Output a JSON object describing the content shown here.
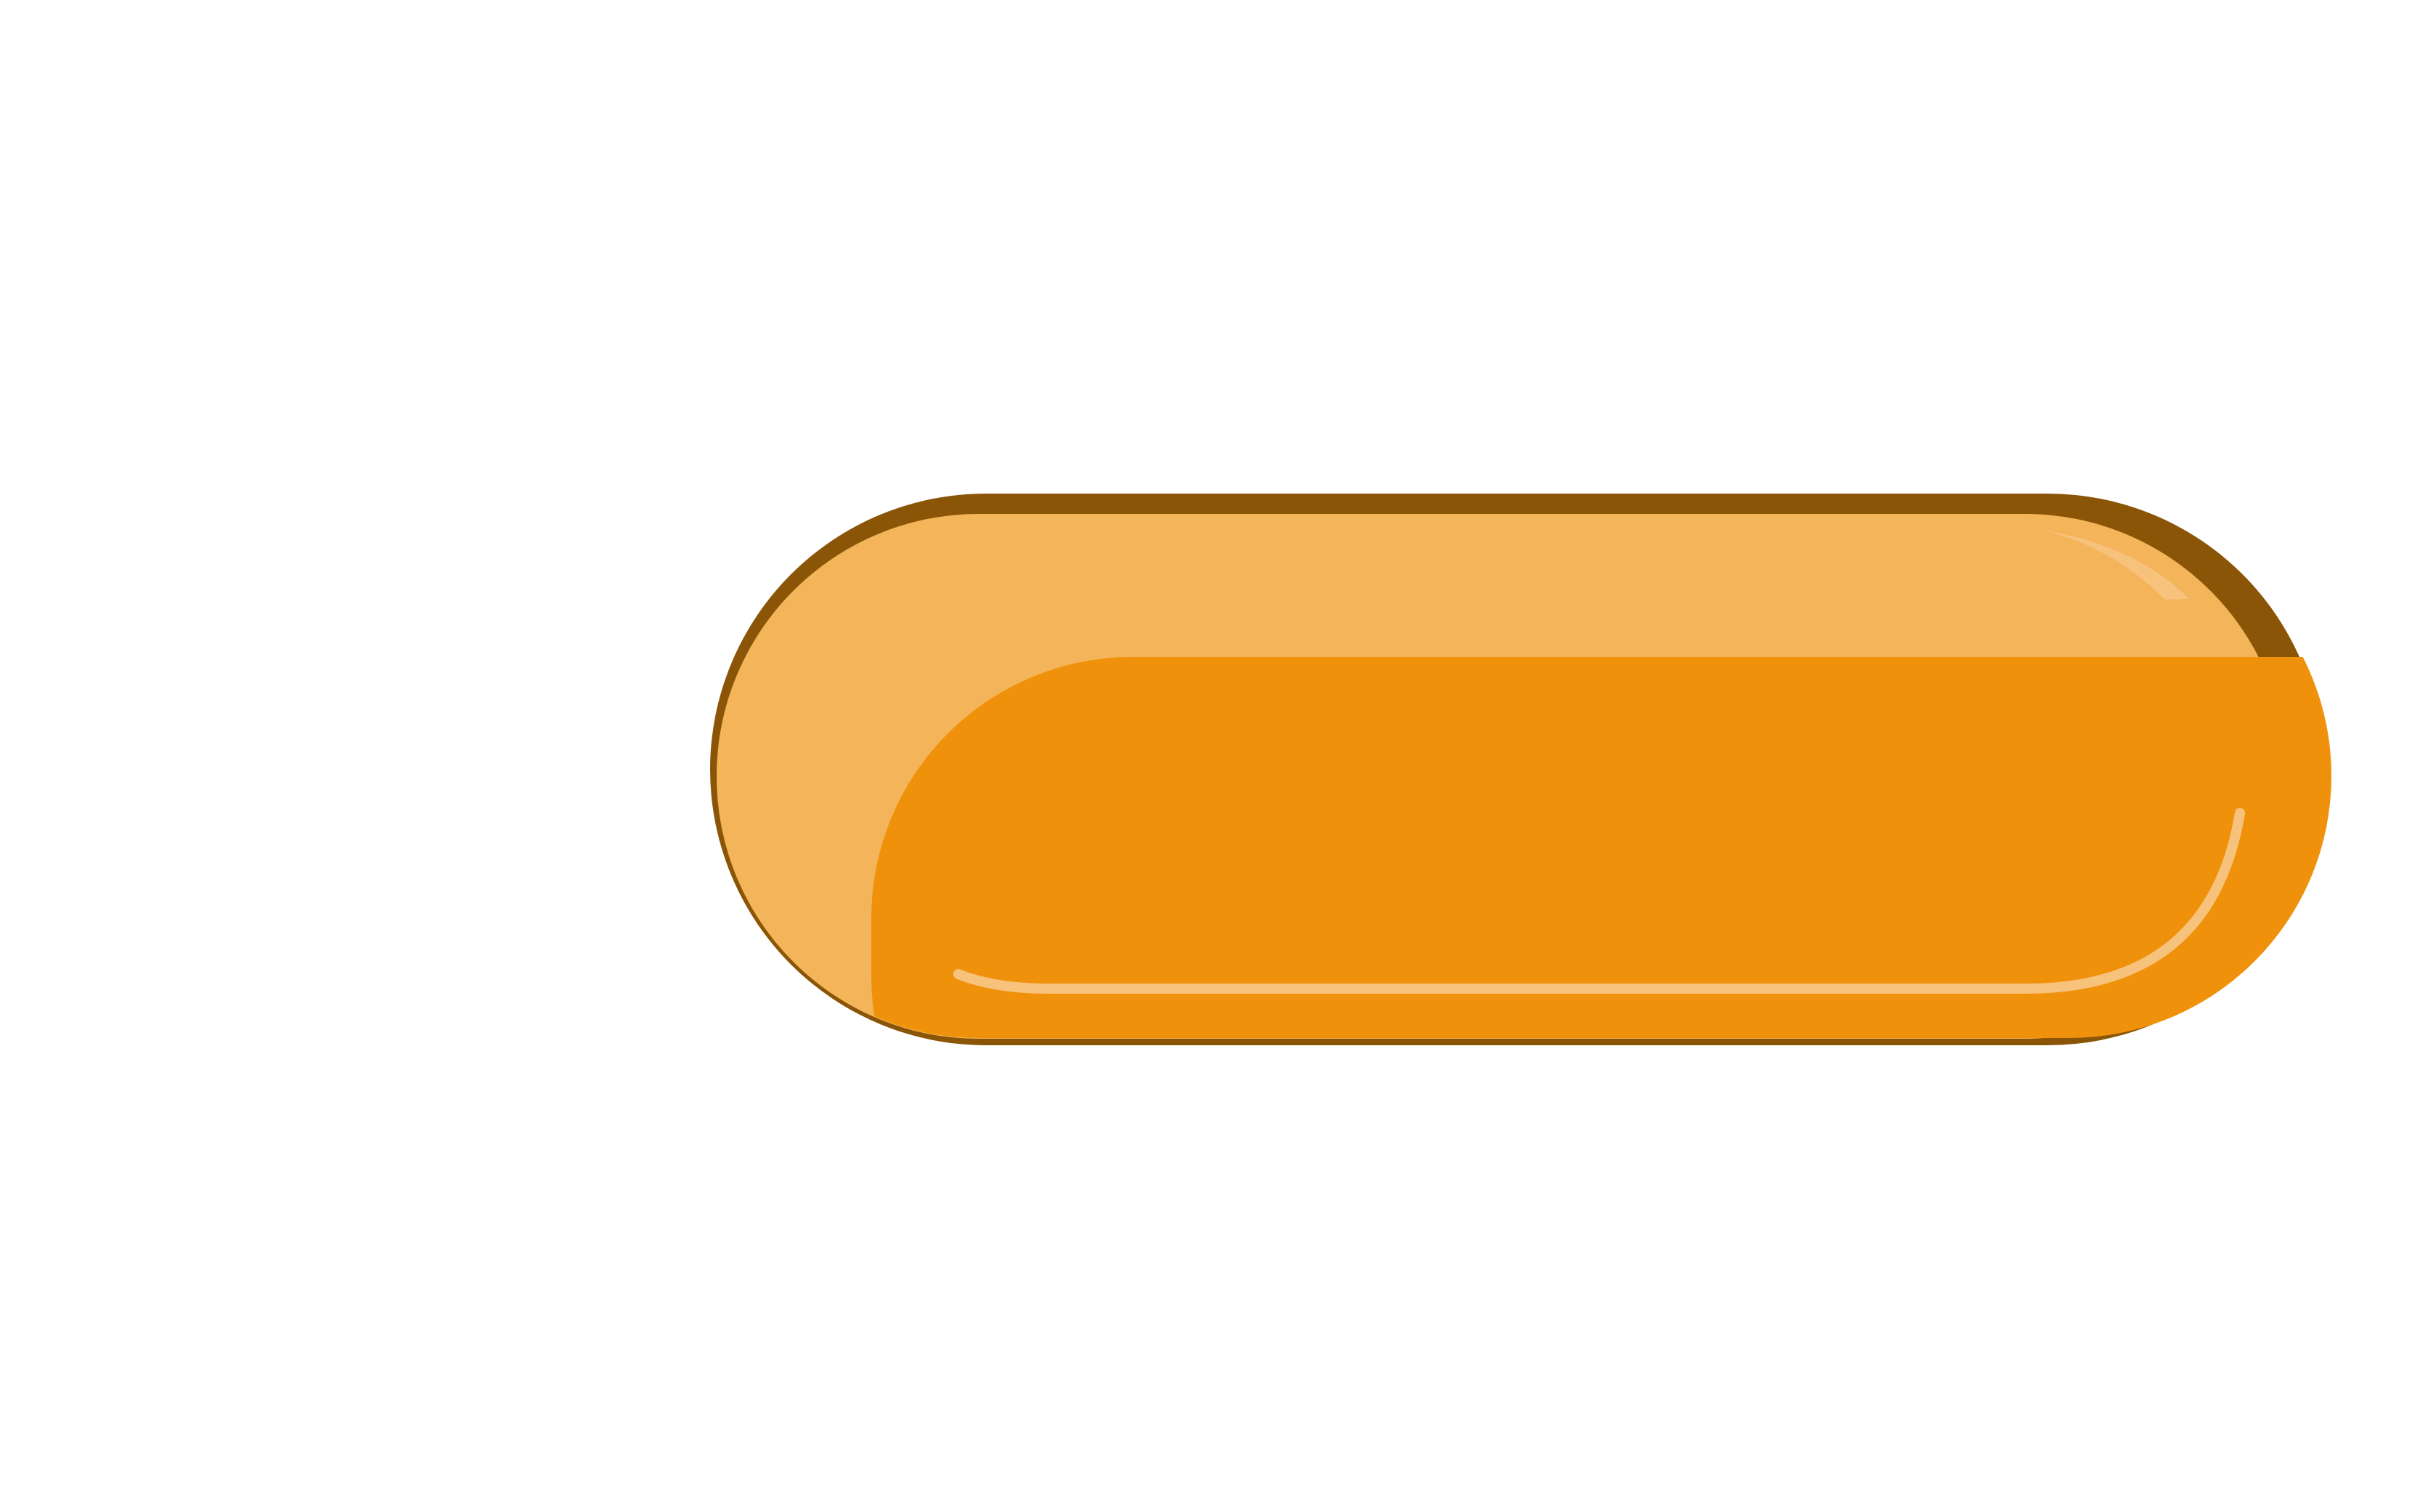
{
  "button": {
    "label": "",
    "icon": "pill-button-shape",
    "colors": {
      "outline": "#8B5507",
      "top_fill": "#F4B55A",
      "body_fill": "#EF910A",
      "highlight": "#F7C27B"
    }
  }
}
